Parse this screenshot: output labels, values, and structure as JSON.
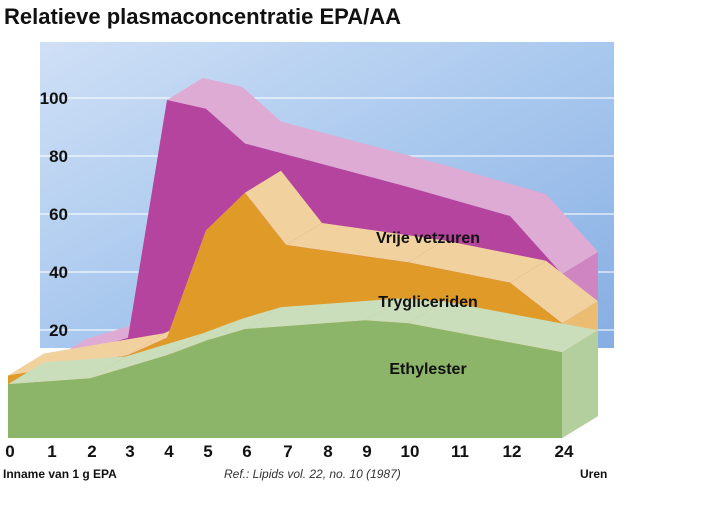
{
  "chart_data": {
    "type": "area",
    "title": "Relatieve plasmaconcentratie EPA/AA",
    "xlabel": "Uren",
    "x_start_note": "Inname van 1 g EPA",
    "reference": "Ref.: Lipids vol. 22, no. 10 (1987)",
    "x_ticks": [
      "0",
      "1",
      "2",
      "3",
      "4",
      "5",
      "6",
      "7",
      "8",
      "9",
      "10",
      "11",
      "12",
      "24"
    ],
    "y_ticks": [
      "20",
      "40",
      "60",
      "80",
      "100"
    ],
    "ylim": [
      0,
      100
    ],
    "layout": "3d-stacked-ribbons",
    "series": [
      {
        "name": "Vrije vetzuren",
        "color": "#b5449f",
        "x": [
          1,
          3,
          4,
          5,
          6,
          10,
          12,
          24
        ],
        "values": [
          10,
          18,
          100,
          97,
          85,
          70,
          60,
          40
        ]
      },
      {
        "name": "Trygliceriden",
        "color": "#e09a28",
        "x": [
          0,
          3,
          4,
          5,
          6,
          7,
          10,
          12,
          24
        ],
        "values": [
          5,
          12,
          18,
          55,
          68,
          50,
          44,
          37,
          23
        ]
      },
      {
        "name": "Ethylester",
        "color": "#8cb56a",
        "x": [
          0,
          2,
          4,
          5,
          6,
          9,
          10,
          24
        ],
        "values": [
          2,
          4,
          12,
          17,
          21,
          24,
          23,
          13
        ]
      }
    ]
  }
}
